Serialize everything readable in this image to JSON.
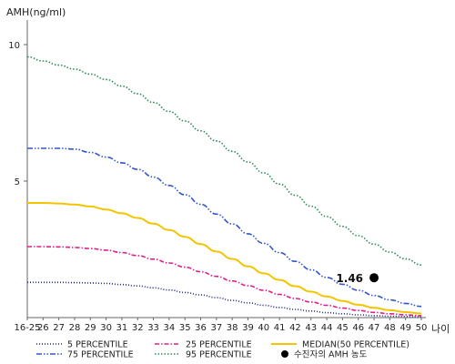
{
  "chart_data": {
    "type": "line",
    "ylabel": "AMH(ng/ml)",
    "xlabel": "나이",
    "categories": [
      "16-25",
      "26",
      "27",
      "28",
      "29",
      "30",
      "31",
      "32",
      "33",
      "34",
      "35",
      "36",
      "37",
      "38",
      "39",
      "40",
      "41",
      "42",
      "43",
      "44",
      "45",
      "46",
      "47",
      "48",
      "49",
      "50"
    ],
    "yticks": [
      5,
      10
    ],
    "ylim": [
      0,
      10.9
    ],
    "grid": false,
    "legend_position": "bottom",
    "series": [
      {
        "key": "p5",
        "name": "5 PERCENTILE",
        "color": "#1a237e",
        "dash": "1,2",
        "values": [
          1.29,
          1.29,
          1.29,
          1.28,
          1.27,
          1.25,
          1.21,
          1.16,
          1.09,
          1.01,
          0.92,
          0.83,
          0.73,
          0.63,
          0.54,
          0.45,
          0.37,
          0.3,
          0.24,
          0.18,
          0.14,
          0.1,
          0.07,
          0.05,
          0.04,
          0.03
        ]
      },
      {
        "key": "p25",
        "name": "25 PERCENTILE",
        "color": "#e01f8c",
        "dash": "5,2,1.5,2",
        "values": [
          2.6,
          2.6,
          2.59,
          2.57,
          2.53,
          2.47,
          2.38,
          2.27,
          2.14,
          2.0,
          1.85,
          1.68,
          1.51,
          1.34,
          1.17,
          1.0,
          0.85,
          0.7,
          0.57,
          0.45,
          0.35,
          0.26,
          0.19,
          0.14,
          0.1,
          0.07
        ]
      },
      {
        "key": "median",
        "name": "MEDIAN(50 PERCENTILE)",
        "color": "#f5c400",
        "dash": "",
        "values": [
          4.2,
          4.2,
          4.18,
          4.14,
          4.07,
          3.96,
          3.82,
          3.65,
          3.44,
          3.21,
          2.96,
          2.69,
          2.42,
          2.15,
          1.88,
          1.62,
          1.38,
          1.15,
          0.95,
          0.77,
          0.61,
          0.47,
          0.36,
          0.27,
          0.2,
          0.15
        ]
      },
      {
        "key": "p75",
        "name": "75 PERCENTILE",
        "color": "#3355cc",
        "dash": "6,2,1.5,2,1.5,2",
        "values": [
          6.2,
          6.2,
          6.2,
          6.17,
          6.05,
          5.88,
          5.67,
          5.43,
          5.15,
          4.84,
          4.5,
          4.15,
          3.79,
          3.43,
          3.07,
          2.72,
          2.38,
          2.06,
          1.75,
          1.47,
          1.22,
          1.0,
          0.81,
          0.65,
          0.52,
          0.41
        ]
      },
      {
        "key": "p95",
        "name": "95 PERCENTILE",
        "color": "#2e8b57",
        "dash": "1.5,2",
        "values": [
          9.55,
          9.4,
          9.25,
          9.1,
          8.92,
          8.72,
          8.48,
          8.2,
          7.88,
          7.55,
          7.2,
          6.84,
          6.47,
          6.09,
          5.7,
          5.3,
          4.89,
          4.48,
          4.08,
          3.7,
          3.34,
          3.0,
          2.69,
          2.4,
          2.15,
          1.93
        ]
      }
    ],
    "point": {
      "name": "수진자의 AMH 농도",
      "x": "47",
      "y": 1.46,
      "label": "1.46",
      "color": "#000000"
    }
  }
}
